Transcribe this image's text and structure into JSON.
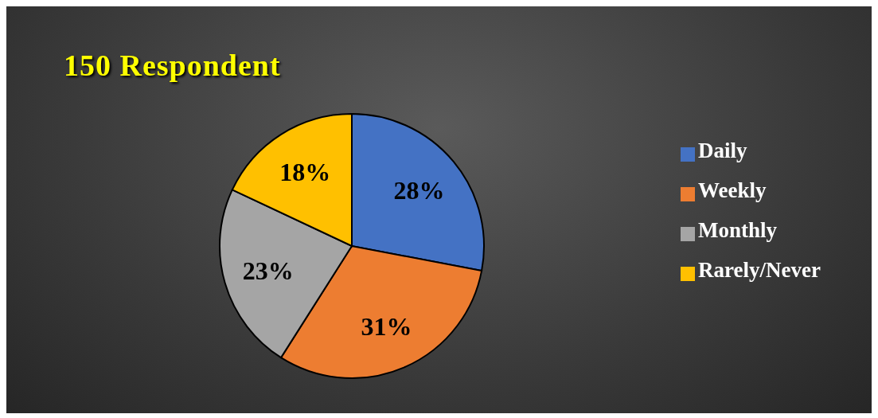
{
  "chart_data": {
    "type": "pie",
    "title": "150 Respondent",
    "categories": [
      "Daily",
      "Weekly",
      "Monthly",
      "Rarely/Never"
    ],
    "values": [
      28,
      31,
      23,
      18
    ],
    "value_labels": [
      "28%",
      "31%",
      "23%",
      "18%"
    ],
    "colors": [
      "#4472c4",
      "#ed7d31",
      "#a5a5a5",
      "#ffc000"
    ],
    "legend": "right"
  }
}
